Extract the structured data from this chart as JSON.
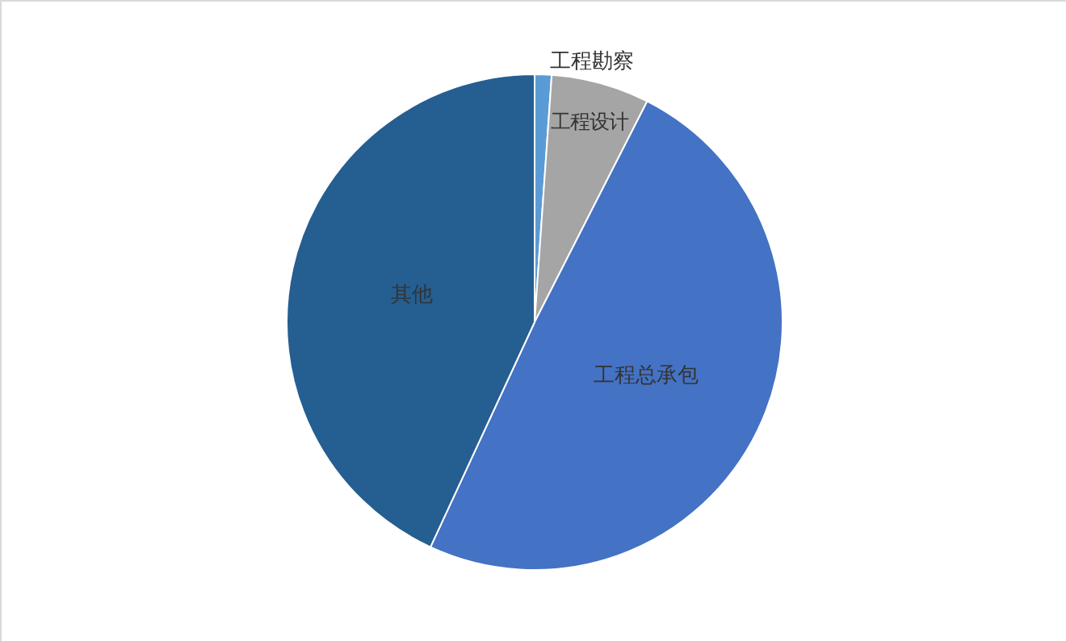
{
  "chart_data": {
    "type": "pie",
    "categories": [
      "工程勘察",
      "工程设计",
      "工程总承包",
      "其他"
    ],
    "values": [
      1.1,
      6.4,
      49.4,
      43.1
    ],
    "colors": [
      "#5b9bd5",
      "#a5a5a5",
      "#4472c4",
      "#255e91"
    ],
    "legend": false
  }
}
